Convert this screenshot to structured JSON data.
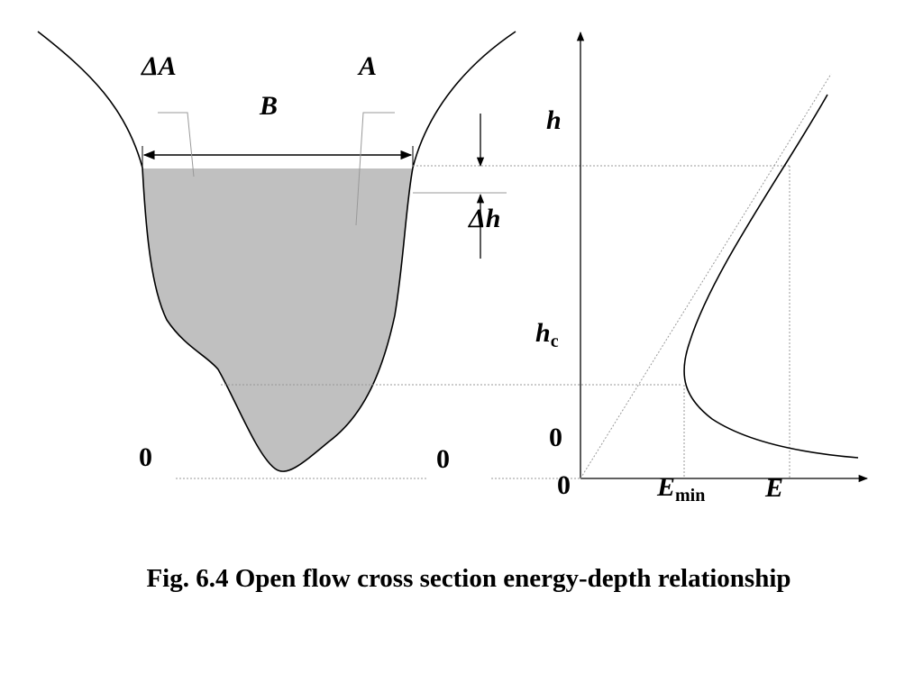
{
  "labels": {
    "delta_area": "ΔA",
    "area": "A",
    "width": "B",
    "delta_depth": "Δh",
    "depth_axis": "h",
    "critical_depth": "h",
    "critical_depth_sub": "c",
    "zero_left": "0",
    "zero_right": "0",
    "zero_graph_axis": "0",
    "zero_origin": "0",
    "e_min": "E",
    "e_min_sub": "min",
    "energy_axis": "E"
  },
  "caption": "Fig. 6.4 Open flow cross section energy-depth relationship",
  "colors": {
    "water_fill": "#c0c0c0",
    "line": "#000000",
    "guide": "#999999"
  }
}
